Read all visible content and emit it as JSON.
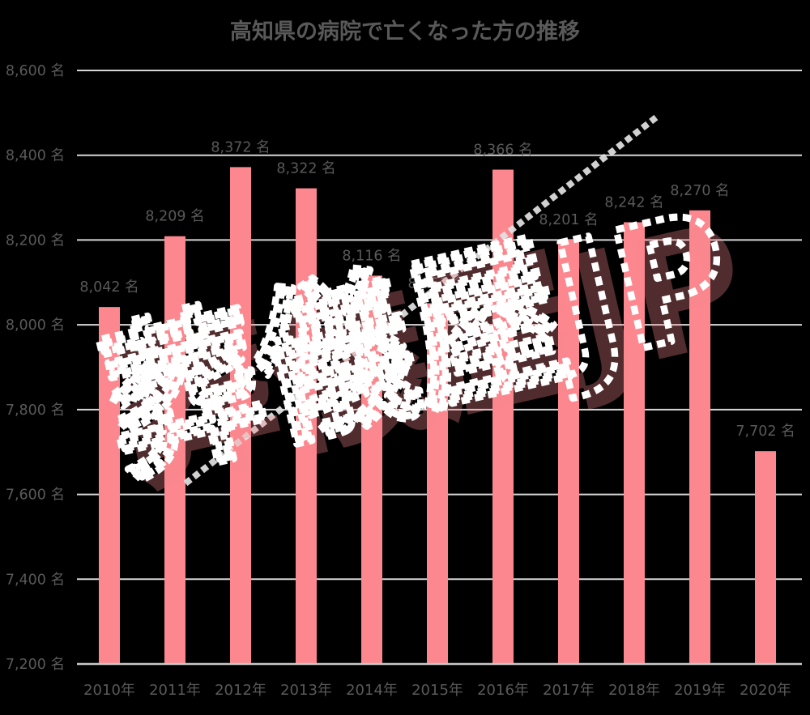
{
  "page": {
    "background": "#000000"
  },
  "chart_data": {
    "type": "bar",
    "title": "高知県の病院で亡くなった方の推移",
    "categories": [
      "2010年",
      "2011年",
      "2012年",
      "2013年",
      "2014年",
      "2015年",
      "2016年",
      "2017年",
      "2018年",
      "2019年",
      "2020年"
    ],
    "values": [
      8042,
      8209,
      8372,
      8322,
      8116,
      8051,
      8366,
      8201,
      8242,
      8270,
      7702
    ],
    "value_labels": [
      "8,042 名",
      "8,209 名",
      "8,372 名",
      "8,322 名",
      "8,116 名",
      "8,051 名",
      "8,366 名",
      "8,201 名",
      "8,242 名",
      "8,270 名",
      "7,702 名"
    ],
    "unit": "名",
    "xlabel": "",
    "ylabel": "",
    "ylim": [
      7200,
      8600
    ],
    "ytick_step": 200,
    "ytick_values": [
      7200,
      7400,
      7600,
      7800,
      8000,
      8200,
      8400,
      8600
    ],
    "ytick_labels": [
      "7,200 名",
      "7,400 名",
      "7,600 名",
      "7,800 名",
      "8,000 名",
      "8,200 名",
      "8,400 名",
      "8,600 名"
    ],
    "grid": true,
    "legend": "none",
    "colors": {
      "bar": "#FC878E",
      "grid": "#D6D6D6",
      "axis": "#C9C9C9",
      "text": "#595959",
      "background": "#000000",
      "watermark_stroke": "#FFFFFF",
      "watermark_shadow": "#FA8A90"
    }
  },
  "watermark": {
    "text": "葬儀屋JP"
  }
}
